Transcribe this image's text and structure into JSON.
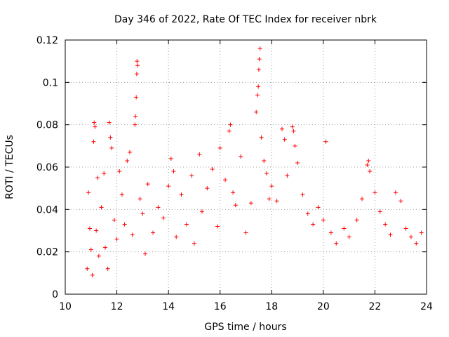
{
  "chart_data": {
    "type": "scatter",
    "title": "Day 346 of 2022, Rate Of TEC Index for receiver nbrk",
    "xlabel": "GPS time / hours",
    "ylabel": "ROTI / TECUs",
    "xlim": [
      10,
      24
    ],
    "ylim": [
      0,
      0.12
    ],
    "x_ticks": [
      10,
      12,
      14,
      16,
      18,
      20,
      22,
      24
    ],
    "x_tick_labels": [
      "10",
      "12",
      "14",
      "16",
      "18",
      "20",
      "22",
      "24"
    ],
    "y_ticks": [
      0,
      0.02,
      0.04,
      0.06,
      0.08,
      0.1,
      0.12
    ],
    "y_tick_labels": [
      "0",
      "0.02",
      "0.04",
      "0.06",
      "0.08",
      "0.1",
      "0.12"
    ],
    "grid": true,
    "marker": "plus",
    "color": "#ff0000",
    "series": [
      {
        "points": [
          [
            10.85,
            0.012
          ],
          [
            10.9,
            0.048
          ],
          [
            10.95,
            0.031
          ],
          [
            11.0,
            0.021
          ],
          [
            11.05,
            0.009
          ],
          [
            11.1,
            0.072
          ],
          [
            11.12,
            0.081
          ],
          [
            11.15,
            0.079
          ],
          [
            11.2,
            0.03
          ],
          [
            11.25,
            0.055
          ],
          [
            11.3,
            0.018
          ],
          [
            11.4,
            0.041
          ],
          [
            11.5,
            0.057
          ],
          [
            11.55,
            0.022
          ],
          [
            11.65,
            0.012
          ],
          [
            11.7,
            0.081
          ],
          [
            11.75,
            0.074
          ],
          [
            11.8,
            0.069
          ],
          [
            11.9,
            0.035
          ],
          [
            12.0,
            0.026
          ],
          [
            12.1,
            0.058
          ],
          [
            12.2,
            0.047
          ],
          [
            12.3,
            0.033
          ],
          [
            12.4,
            0.063
          ],
          [
            12.5,
            0.067
          ],
          [
            12.6,
            0.028
          ],
          [
            12.7,
            0.08
          ],
          [
            12.72,
            0.084
          ],
          [
            12.75,
            0.093
          ],
          [
            12.77,
            0.104
          ],
          [
            12.78,
            0.11
          ],
          [
            12.8,
            0.108
          ],
          [
            12.9,
            0.045
          ],
          [
            13.0,
            0.038
          ],
          [
            13.1,
            0.019
          ],
          [
            13.2,
            0.052
          ],
          [
            13.4,
            0.029
          ],
          [
            13.6,
            0.041
          ],
          [
            13.8,
            0.036
          ],
          [
            14.0,
            0.051
          ],
          [
            14.1,
            0.064
          ],
          [
            14.2,
            0.058
          ],
          [
            14.3,
            0.027
          ],
          [
            14.5,
            0.047
          ],
          [
            14.7,
            0.033
          ],
          [
            14.9,
            0.056
          ],
          [
            15.0,
            0.024
          ],
          [
            15.2,
            0.066
          ],
          [
            15.3,
            0.039
          ],
          [
            15.5,
            0.05
          ],
          [
            15.7,
            0.059
          ],
          [
            15.9,
            0.032
          ],
          [
            16.0,
            0.069
          ],
          [
            16.2,
            0.054
          ],
          [
            16.35,
            0.077
          ],
          [
            16.4,
            0.08
          ],
          [
            16.5,
            0.048
          ],
          [
            16.6,
            0.042
          ],
          [
            16.8,
            0.065
          ],
          [
            17.0,
            0.029
          ],
          [
            17.2,
            0.043
          ],
          [
            17.4,
            0.086
          ],
          [
            17.45,
            0.094
          ],
          [
            17.48,
            0.098
          ],
          [
            17.5,
            0.106
          ],
          [
            17.52,
            0.111
          ],
          [
            17.55,
            0.116
          ],
          [
            17.6,
            0.074
          ],
          [
            17.7,
            0.063
          ],
          [
            17.8,
            0.057
          ],
          [
            17.9,
            0.045
          ],
          [
            18.0,
            0.051
          ],
          [
            18.2,
            0.044
          ],
          [
            18.4,
            0.078
          ],
          [
            18.5,
            0.073
          ],
          [
            18.6,
            0.056
          ],
          [
            18.8,
            0.079
          ],
          [
            18.85,
            0.077
          ],
          [
            18.9,
            0.07
          ],
          [
            19.0,
            0.062
          ],
          [
            19.2,
            0.047
          ],
          [
            19.4,
            0.038
          ],
          [
            19.6,
            0.033
          ],
          [
            19.8,
            0.041
          ],
          [
            20.0,
            0.035
          ],
          [
            20.1,
            0.072
          ],
          [
            20.3,
            0.029
          ],
          [
            20.5,
            0.024
          ],
          [
            20.8,
            0.031
          ],
          [
            21.0,
            0.027
          ],
          [
            21.3,
            0.035
          ],
          [
            21.5,
            0.045
          ],
          [
            21.7,
            0.061
          ],
          [
            21.75,
            0.063
          ],
          [
            21.8,
            0.058
          ],
          [
            22.0,
            0.048
          ],
          [
            22.2,
            0.039
          ],
          [
            22.4,
            0.033
          ],
          [
            22.6,
            0.028
          ],
          [
            22.8,
            0.048
          ],
          [
            23.0,
            0.044
          ],
          [
            23.2,
            0.031
          ],
          [
            23.4,
            0.027
          ],
          [
            23.6,
            0.024
          ],
          [
            23.8,
            0.029
          ]
        ]
      }
    ]
  }
}
